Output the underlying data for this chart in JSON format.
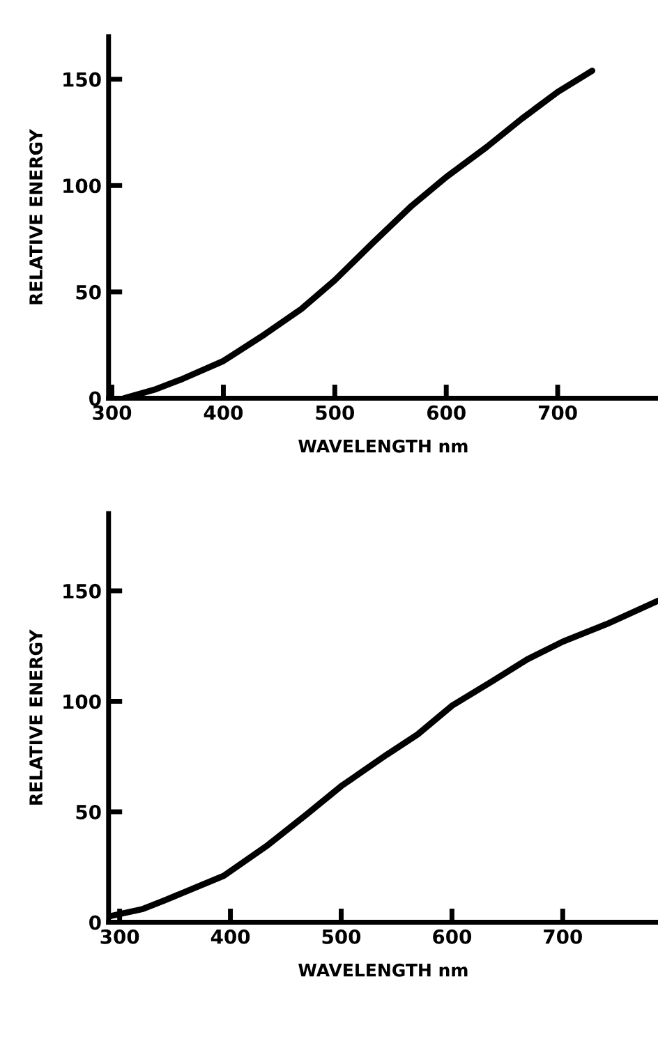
{
  "chart_data": [
    {
      "type": "line",
      "xlabel": "WAVELENGTH nm",
      "ylabel": "RELATIVE ENERGY",
      "xlim": [
        297,
        790
      ],
      "ylim": [
        0,
        170
      ],
      "xticks": [
        300,
        400,
        500,
        600,
        700
      ],
      "yticks": [
        0,
        50,
        100,
        150
      ],
      "grid": false,
      "legend": false,
      "marker": "none",
      "line_style": "solid",
      "series": [
        {
          "color": "#000000",
          "x": [
            311,
            338,
            363,
            400,
            437,
            470,
            500,
            534,
            569,
            600,
            636,
            668,
            700,
            731
          ],
          "values": [
            0,
            4,
            9,
            17.5,
            30,
            42,
            55.5,
            73,
            90.5,
            104,
            118,
            131.5,
            144,
            154
          ]
        }
      ]
    },
    {
      "type": "line",
      "xlabel": "WAVELENGTH nm",
      "ylabel": "RELATIVE ENERGY",
      "xlim": [
        290,
        786
      ],
      "ylim": [
        0,
        185
      ],
      "xticks": [
        300,
        400,
        500,
        600,
        700
      ],
      "yticks": [
        0,
        50,
        100,
        150
      ],
      "grid": false,
      "legend": false,
      "marker": "none",
      "line_style": "solid",
      "series": [
        {
          "color": "#000000",
          "x": [
            290,
            321,
            341,
            394,
            434,
            468,
            500,
            541,
            569,
            600,
            636,
            668,
            700,
            740,
            786
          ],
          "values": [
            2.6,
            6,
            10,
            21,
            35,
            48.5,
            61.6,
            75.8,
            85,
            98,
            109,
            119,
            127,
            135,
            145.5
          ]
        }
      ]
    }
  ]
}
